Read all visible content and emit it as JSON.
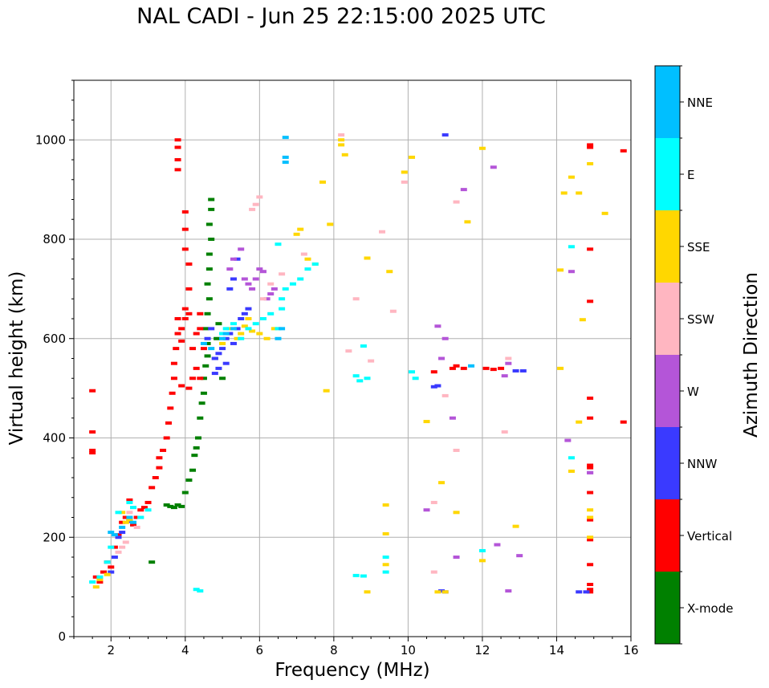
{
  "chart_data": {
    "type": "scatter",
    "title": "NAL CADI - Jun 25 22:15:00 2025 UTC",
    "xlabel": "Frequency (MHz)",
    "ylabel": "Virtual height (km)",
    "xlim": [
      1,
      16
    ],
    "ylim": [
      0,
      1120
    ],
    "xticks": [
      2,
      4,
      6,
      8,
      10,
      12,
      14,
      16
    ],
    "yticks": [
      0,
      200,
      400,
      600,
      800,
      1000
    ],
    "grid": true,
    "colorbar": {
      "label": "Azimuth Direction",
      "categories": [
        "X-mode",
        "Vertical",
        "NNW",
        "W",
        "SSW",
        "SSE",
        "E",
        "NNE"
      ],
      "colors": [
        "#008000",
        "#ff0000",
        "#3a3aff",
        "#b455d8",
        "#ffb6c1",
        "#ffd700",
        "#00ffff",
        "#00bfff"
      ]
    },
    "series": [
      {
        "name": "X-mode",
        "points": [
          [
            3.1,
            150
          ],
          [
            3.5,
            265
          ],
          [
            3.6,
            262
          ],
          [
            3.7,
            260
          ],
          [
            3.8,
            265
          ],
          [
            3.9,
            262
          ],
          [
            4.0,
            290
          ],
          [
            4.1,
            315
          ],
          [
            4.2,
            335
          ],
          [
            4.25,
            365
          ],
          [
            4.3,
            380
          ],
          [
            4.35,
            400
          ],
          [
            4.4,
            440
          ],
          [
            4.45,
            470
          ],
          [
            4.5,
            490
          ],
          [
            4.5,
            520
          ],
          [
            4.55,
            545
          ],
          [
            4.6,
            565
          ],
          [
            4.6,
            590
          ],
          [
            4.55,
            620
          ],
          [
            4.6,
            650
          ],
          [
            4.65,
            680
          ],
          [
            4.6,
            710
          ],
          [
            4.65,
            740
          ],
          [
            4.65,
            770
          ],
          [
            4.7,
            800
          ],
          [
            4.65,
            830
          ],
          [
            4.7,
            860
          ],
          [
            4.7,
            880
          ],
          [
            4.8,
            560
          ],
          [
            4.85,
            600
          ],
          [
            4.9,
            630
          ],
          [
            5.0,
            520
          ]
        ]
      },
      {
        "name": "Vertical",
        "points": [
          [
            1.5,
            495
          ],
          [
            1.5,
            412
          ],
          [
            1.5,
            375
          ],
          [
            1.5,
            370
          ],
          [
            1.6,
            120
          ],
          [
            1.7,
            110
          ],
          [
            1.8,
            130
          ],
          [
            1.9,
            150
          ],
          [
            2.0,
            140
          ],
          [
            2.1,
            180
          ],
          [
            2.2,
            205
          ],
          [
            2.3,
            230
          ],
          [
            2.4,
            240
          ],
          [
            2.5,
            235
          ],
          [
            2.5,
            275
          ],
          [
            2.6,
            225
          ],
          [
            2.7,
            240
          ],
          [
            2.8,
            255
          ],
          [
            2.9,
            260
          ],
          [
            3.0,
            270
          ],
          [
            3.1,
            300
          ],
          [
            3.2,
            320
          ],
          [
            3.3,
            340
          ],
          [
            3.3,
            360
          ],
          [
            3.4,
            375
          ],
          [
            3.5,
            400
          ],
          [
            3.55,
            430
          ],
          [
            3.6,
            460
          ],
          [
            3.65,
            490
          ],
          [
            3.7,
            520
          ],
          [
            3.7,
            550
          ],
          [
            3.75,
            580
          ],
          [
            3.8,
            610
          ],
          [
            3.8,
            640
          ],
          [
            3.9,
            620
          ],
          [
            3.9,
            595
          ],
          [
            4.0,
            640
          ],
          [
            4.0,
            660
          ],
          [
            4.0,
            780
          ],
          [
            4.0,
            820
          ],
          [
            4.0,
            855
          ],
          [
            4.1,
            650
          ],
          [
            4.1,
            700
          ],
          [
            4.1,
            750
          ],
          [
            4.2,
            520
          ],
          [
            4.2,
            580
          ],
          [
            4.3,
            540
          ],
          [
            4.3,
            610
          ],
          [
            4.4,
            520
          ],
          [
            4.5,
            580
          ],
          [
            3.9,
            505
          ],
          [
            4.1,
            500
          ],
          [
            3.8,
            940
          ],
          [
            3.8,
            960
          ],
          [
            3.8,
            985
          ],
          [
            3.8,
            1000
          ],
          [
            4.4,
            650
          ],
          [
            4.4,
            620
          ],
          [
            10.7,
            533
          ],
          [
            11.2,
            540
          ],
          [
            11.3,
            545
          ],
          [
            11.5,
            540
          ],
          [
            12.1,
            540
          ],
          [
            12.3,
            538
          ],
          [
            12.5,
            540
          ],
          [
            14.9,
            990
          ],
          [
            14.9,
            985
          ],
          [
            14.9,
            780
          ],
          [
            14.9,
            675
          ],
          [
            14.9,
            480
          ],
          [
            14.9,
            440
          ],
          [
            14.9,
            345
          ],
          [
            14.9,
            340
          ],
          [
            14.9,
            290
          ],
          [
            14.9,
            235
          ],
          [
            14.9,
            195
          ],
          [
            14.9,
            145
          ],
          [
            14.9,
            105
          ],
          [
            14.9,
            95
          ],
          [
            14.9,
            90
          ],
          [
            15.8,
            978
          ],
          [
            15.8,
            432
          ]
        ]
      },
      {
        "name": "NNW",
        "points": [
          [
            2.0,
            130
          ],
          [
            2.1,
            160
          ],
          [
            2.2,
            200
          ],
          [
            2.3,
            210
          ],
          [
            2.5,
            232
          ],
          [
            4.6,
            600
          ],
          [
            4.7,
            620
          ],
          [
            4.8,
            560
          ],
          [
            4.9,
            570
          ],
          [
            5.0,
            580
          ],
          [
            5.1,
            600
          ],
          [
            5.2,
            610
          ],
          [
            5.3,
            590
          ],
          [
            5.4,
            620
          ],
          [
            5.5,
            640
          ],
          [
            5.6,
            650
          ],
          [
            5.7,
            660
          ],
          [
            5.2,
            700
          ],
          [
            5.3,
            720
          ],
          [
            5.4,
            760
          ],
          [
            4.8,
            530
          ],
          [
            4.9,
            540
          ],
          [
            5.1,
            550
          ],
          [
            10.7,
            503
          ],
          [
            10.8,
            505
          ],
          [
            10.9,
            92
          ],
          [
            11.0,
            90
          ],
          [
            11.0,
            1010
          ],
          [
            12.9,
            535
          ],
          [
            13.1,
            535
          ],
          [
            14.6,
            90
          ],
          [
            14.8,
            90
          ]
        ]
      },
      {
        "name": "W",
        "points": [
          [
            5.7,
            710
          ],
          [
            5.8,
            700
          ],
          [
            5.9,
            720
          ],
          [
            6.0,
            740
          ],
          [
            6.1,
            735
          ],
          [
            6.2,
            680
          ],
          [
            6.3,
            690
          ],
          [
            6.4,
            700
          ],
          [
            5.2,
            740
          ],
          [
            5.3,
            760
          ],
          [
            5.5,
            780
          ],
          [
            5.6,
            720
          ],
          [
            10.5,
            255
          ],
          [
            10.8,
            625
          ],
          [
            10.9,
            560
          ],
          [
            11.0,
            600
          ],
          [
            11.2,
            440
          ],
          [
            11.3,
            160
          ],
          [
            11.5,
            900
          ],
          [
            12.3,
            945
          ],
          [
            12.4,
            185
          ],
          [
            12.7,
            550
          ],
          [
            12.7,
            92
          ],
          [
            12.6,
            525
          ],
          [
            13.0,
            163
          ],
          [
            14.3,
            395
          ],
          [
            14.4,
            735
          ],
          [
            14.9,
            330
          ],
          [
            14.9,
            330
          ]
        ]
      },
      {
        "name": "SSW",
        "points": [
          [
            2.2,
            170
          ],
          [
            2.3,
            180
          ],
          [
            2.4,
            190
          ],
          [
            2.5,
            250
          ],
          [
            2.6,
            260
          ],
          [
            2.7,
            220
          ],
          [
            2.8,
            240
          ],
          [
            5.8,
            860
          ],
          [
            5.9,
            870
          ],
          [
            6.0,
            885
          ],
          [
            6.1,
            680
          ],
          [
            6.3,
            710
          ],
          [
            6.6,
            730
          ],
          [
            7.2,
            770
          ],
          [
            8.2,
            1010
          ],
          [
            8.4,
            575
          ],
          [
            8.6,
            680
          ],
          [
            9.0,
            555
          ],
          [
            9.3,
            815
          ],
          [
            9.6,
            655
          ],
          [
            9.9,
            915
          ],
          [
            10.7,
            130
          ],
          [
            10.7,
            270
          ],
          [
            11.0,
            485
          ],
          [
            11.3,
            375
          ],
          [
            11.3,
            875
          ],
          [
            12.6,
            412
          ],
          [
            12.7,
            560
          ]
        ]
      },
      {
        "name": "SSE",
        "points": [
          [
            1.6,
            100
          ],
          [
            1.7,
            115
          ],
          [
            1.9,
            125
          ],
          [
            2.3,
            250
          ],
          [
            2.4,
            230
          ],
          [
            2.5,
            235
          ],
          [
            5.0,
            590
          ],
          [
            5.2,
            620
          ],
          [
            5.4,
            600
          ],
          [
            5.5,
            610
          ],
          [
            5.6,
            625
          ],
          [
            5.7,
            640
          ],
          [
            5.8,
            615
          ],
          [
            6.0,
            610
          ],
          [
            6.2,
            600
          ],
          [
            6.4,
            620
          ],
          [
            7.0,
            810
          ],
          [
            7.1,
            820
          ],
          [
            7.3,
            760
          ],
          [
            7.5,
            750
          ],
          [
            7.7,
            915
          ],
          [
            7.9,
            830
          ],
          [
            7.8,
            495
          ],
          [
            8.2,
            990
          ],
          [
            8.3,
            970
          ],
          [
            8.2,
            1000
          ],
          [
            8.9,
            90
          ],
          [
            8.9,
            762
          ],
          [
            9.4,
            265
          ],
          [
            9.4,
            207
          ],
          [
            9.4,
            145
          ],
          [
            9.5,
            735
          ],
          [
            9.9,
            935
          ],
          [
            10.1,
            965
          ],
          [
            10.5,
            433
          ],
          [
            10.8,
            90
          ],
          [
            10.9,
            310
          ],
          [
            11.0,
            90
          ],
          [
            11.3,
            250
          ],
          [
            11.6,
            835
          ],
          [
            12.0,
            983
          ],
          [
            12.0,
            153
          ],
          [
            12.9,
            222
          ],
          [
            14.2,
            893
          ],
          [
            14.4,
            925
          ],
          [
            14.6,
            893
          ],
          [
            14.6,
            432
          ],
          [
            14.7,
            638
          ],
          [
            14.4,
            333
          ],
          [
            14.1,
            540
          ],
          [
            14.1,
            738
          ],
          [
            14.9,
            952
          ],
          [
            15.3,
            852
          ],
          [
            14.9,
            255
          ],
          [
            14.9,
            240
          ],
          [
            14.9,
            200
          ]
        ]
      },
      {
        "name": "E",
        "points": [
          [
            1.5,
            110
          ],
          [
            1.7,
            120
          ],
          [
            1.9,
            150
          ],
          [
            2.0,
            180
          ],
          [
            2.2,
            250
          ],
          [
            2.5,
            270
          ],
          [
            2.6,
            260
          ],
          [
            2.8,
            240
          ],
          [
            3.0,
            255
          ],
          [
            4.3,
            95
          ],
          [
            4.4,
            92
          ],
          [
            5.0,
            610
          ],
          [
            5.1,
            620
          ],
          [
            5.3,
            630
          ],
          [
            5.5,
            600
          ],
          [
            5.7,
            620
          ],
          [
            5.9,
            630
          ],
          [
            6.1,
            640
          ],
          [
            6.3,
            650
          ],
          [
            6.5,
            620
          ],
          [
            6.6,
            660
          ],
          [
            6.6,
            680
          ],
          [
            6.7,
            700
          ],
          [
            6.9,
            710
          ],
          [
            7.1,
            720
          ],
          [
            7.3,
            740
          ],
          [
            7.5,
            750
          ],
          [
            6.5,
            790
          ],
          [
            8.6,
            525
          ],
          [
            8.7,
            515
          ],
          [
            8.8,
            585
          ],
          [
            8.9,
            520
          ],
          [
            9.4,
            160
          ],
          [
            9.4,
            130
          ],
          [
            8.6,
            123
          ],
          [
            8.8,
            122
          ],
          [
            10.1,
            533
          ],
          [
            10.2,
            520
          ],
          [
            12.0,
            173
          ],
          [
            14.4,
            785
          ],
          [
            14.4,
            360
          ]
        ]
      },
      {
        "name": "NNE",
        "points": [
          [
            2.0,
            210
          ],
          [
            2.1,
            205
          ],
          [
            2.3,
            220
          ],
          [
            2.5,
            240
          ],
          [
            2.6,
            230
          ],
          [
            4.5,
            590
          ],
          [
            4.7,
            580
          ],
          [
            5.0,
            600
          ],
          [
            5.1,
            610
          ],
          [
            5.3,
            620
          ],
          [
            6.5,
            600
          ],
          [
            6.6,
            620
          ],
          [
            6.7,
            1005
          ],
          [
            6.7,
            965
          ],
          [
            6.7,
            955
          ],
          [
            11.7,
            545
          ]
        ]
      }
    ]
  }
}
